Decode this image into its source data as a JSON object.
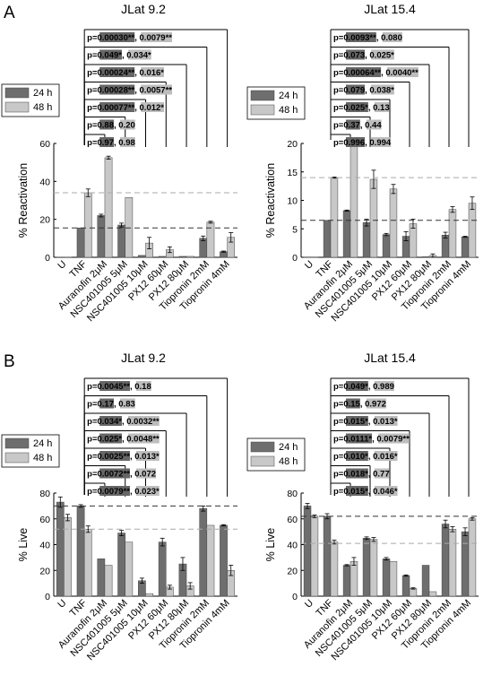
{
  "chart_data": [
    {
      "type": "bar",
      "panel_label": "A",
      "title": "JLat 9.2",
      "ylabel": "% Reactivation",
      "ylim": [
        0,
        60
      ],
      "yticks": [
        0,
        20,
        40,
        60
      ],
      "categories": [
        "U",
        "TNF",
        "Auranofin 2μM",
        "NSC401005 5μM",
        "NSC401005 10μM",
        "PX12 60μM",
        "PX12 80μM",
        "Tiopronin 2mM",
        "Tiopronin 4mM"
      ],
      "series": [
        {
          "name": "24 h",
          "color": "#6e6e6e",
          "values": [
            0.1,
            15.5,
            22,
            17,
            1,
            0.5,
            0.5,
            10,
            3
          ],
          "errors": [
            0,
            0,
            0.7,
            1,
            0,
            0,
            0,
            1.2,
            0.3
          ]
        },
        {
          "name": "48 h",
          "color": "#c8c8c8",
          "values": [
            0.1,
            34,
            52.5,
            31.5,
            7.5,
            4,
            0.5,
            18.5,
            10.5
          ],
          "errors": [
            0,
            2,
            0.8,
            0,
            3,
            1.5,
            0,
            0.5,
            2.5
          ]
        }
      ],
      "reference_lines": [
        {
          "value": 34,
          "color": "#aaaaaa"
        },
        {
          "value": 15.5,
          "color": "#333333"
        }
      ],
      "comparisons": [
        {
          "p24": "p=0.00030**",
          "p48": "0.0079**"
        },
        {
          "p24": "p=0.049*",
          "p48": "0.034*"
        },
        {
          "p24": "p=0.00024**",
          "p48": "0.016*"
        },
        {
          "p24": "p=0.00028**",
          "p48": "0.0057**"
        },
        {
          "p24": "p=0.00077**",
          "p48": "0.012*"
        },
        {
          "p24": "p=0.88",
          "p48": "0.20"
        },
        {
          "p24": "p=0.97",
          "p48": "0.98"
        }
      ],
      "legend": {
        "labels": [
          "24 h",
          "48 h"
        ]
      }
    },
    {
      "type": "bar",
      "panel_label": "",
      "title": "JLat 15.4",
      "ylabel": "% Reactivation",
      "ylim": [
        0,
        20
      ],
      "yticks": [
        0,
        5,
        10,
        15,
        20
      ],
      "categories": [
        "U",
        "TNF",
        "Auranofin 2μM",
        "NSC401005 5μM",
        "NSC401005 10μM",
        "PX12 60μM",
        "PX12 80μM",
        "Tiopronin 2mM",
        "Tiopronin 4mM"
      ],
      "series": [
        {
          "name": "24 h",
          "color": "#6e6e6e",
          "values": [
            0.05,
            6.5,
            8.2,
            6.1,
            4,
            3.7,
            0.1,
            3.9,
            3.6
          ],
          "errors": [
            0,
            0,
            0.1,
            0.6,
            0.2,
            0.8,
            0,
            0.5,
            0.1
          ]
        },
        {
          "name": "48 h",
          "color": "#c8c8c8",
          "values": [
            0.05,
            14,
            20,
            13.7,
            12,
            5.9,
            0.3,
            8.4,
            9.5
          ],
          "errors": [
            0,
            0.1,
            0.2,
            1.6,
            0.8,
            0.8,
            0.3,
            0.5,
            1.1
          ]
        }
      ],
      "reference_lines": [
        {
          "value": 14,
          "color": "#aaaaaa"
        },
        {
          "value": 6.5,
          "color": "#333333"
        }
      ],
      "comparisons": [
        {
          "p24": "p=0.0093**",
          "p48": "0.080"
        },
        {
          "p24": "p=0.073",
          "p48": "0.025*"
        },
        {
          "p24": "p=0.00064**",
          "p48": "0.0040**"
        },
        {
          "p24": "p=0.079",
          "p48": "0.038*"
        },
        {
          "p24": "p=0.025*",
          "p48": "0.13"
        },
        {
          "p24": "p=0.37",
          "p48": "0.44"
        },
        {
          "p24": "p=0.996",
          "p48": "0.994"
        }
      ],
      "legend": {
        "labels": [
          "24 h",
          "48 h"
        ]
      }
    },
    {
      "type": "bar",
      "panel_label": "B",
      "title": "JLat 9.2",
      "ylabel": "% Live",
      "ylim": [
        0,
        80
      ],
      "yticks": [
        0,
        20,
        40,
        60,
        80
      ],
      "categories": [
        "U",
        "TNF",
        "Auranofin 2μM",
        "NSC401005 5μM",
        "NSC401005 10μM",
        "PX12 60μM",
        "PX12 80μM",
        "Tiopronin 2mM",
        "Tiopronin 4mM"
      ],
      "series": [
        {
          "name": "24 h",
          "color": "#6e6e6e",
          "values": [
            73,
            70,
            29,
            49,
            12,
            42,
            25,
            68,
            55
          ],
          "errors": [
            4,
            1,
            0,
            2,
            2,
            3,
            5,
            2,
            0.5
          ]
        },
        {
          "name": "48 h",
          "color": "#c8c8c8",
          "values": [
            61,
            52,
            24,
            42,
            2,
            7,
            8,
            55,
            20
          ],
          "errors": [
            2.5,
            2.5,
            0,
            0,
            0,
            1.5,
            2.5,
            0,
            4
          ]
        }
      ],
      "reference_lines": [
        {
          "value": 70,
          "color": "#333333"
        },
        {
          "value": 52,
          "color": "#aaaaaa"
        }
      ],
      "comparisons": [
        {
          "p24": "p=0.0045**",
          "p48": "0.18"
        },
        {
          "p24": "p=0.17",
          "p48": "0.83"
        },
        {
          "p24": "p=0.034*",
          "p48": "0.0032**"
        },
        {
          "p24": "p=0.025*",
          "p48": "0.0048**"
        },
        {
          "p24": "p=0.0025**",
          "p48": "0.013*"
        },
        {
          "p24": "p=0.0072**",
          "p48": "0.072"
        },
        {
          "p24": "p=0.0079**",
          "p48": "0.023*"
        }
      ],
      "legend": {
        "labels": [
          "24 h",
          "48 h"
        ]
      }
    },
    {
      "type": "bar",
      "panel_label": "",
      "title": "JLat 15.4",
      "ylabel": "% Live",
      "ylim": [
        0,
        80
      ],
      "yticks": [
        0,
        20,
        40,
        60,
        80
      ],
      "categories": [
        "U",
        "TNF",
        "Auranofin 2μM",
        "NSC401005 5μM",
        "NSC401005 10μM",
        "PX12 60μM",
        "PX12 80μM",
        "Tiopronin 2mM",
        "Tiopronin 4mM"
      ],
      "series": [
        {
          "name": "24 h",
          "color": "#6e6e6e",
          "values": [
            70,
            62,
            24,
            45,
            29,
            16,
            24,
            56,
            50
          ],
          "errors": [
            2,
            2,
            0.5,
            1,
            1,
            0.5,
            0,
            3,
            3
          ]
        },
        {
          "name": "48 h",
          "color": "#c8c8c8",
          "values": [
            62,
            42,
            27,
            44,
            27,
            6,
            3.5,
            52,
            60
          ],
          "errors": [
            1,
            1.5,
            3,
            1.5,
            0,
            0.5,
            0,
            2,
            1
          ]
        }
      ],
      "reference_lines": [
        {
          "value": 62,
          "color": "#333333"
        },
        {
          "value": 41,
          "color": "#aaaaaa"
        }
      ],
      "comparisons": [
        {
          "p24": "p=0.049*",
          "p48": "0.989"
        },
        {
          "p24": "p=0.15",
          "p48": "0.972"
        },
        {
          "p24": "p=0.015*",
          "p48": "0.013*"
        },
        {
          "p24": "p=0.0111*",
          "p48": "0.0079**"
        },
        {
          "p24": "p=0.010*",
          "p48": "0.016*"
        },
        {
          "p24": "p=0.018*",
          "p48": "0.77"
        },
        {
          "p24": "p=0.015*",
          "p48": "0.046*"
        }
      ],
      "legend": {
        "labels": [
          "24 h",
          "48 h"
        ]
      }
    }
  ]
}
